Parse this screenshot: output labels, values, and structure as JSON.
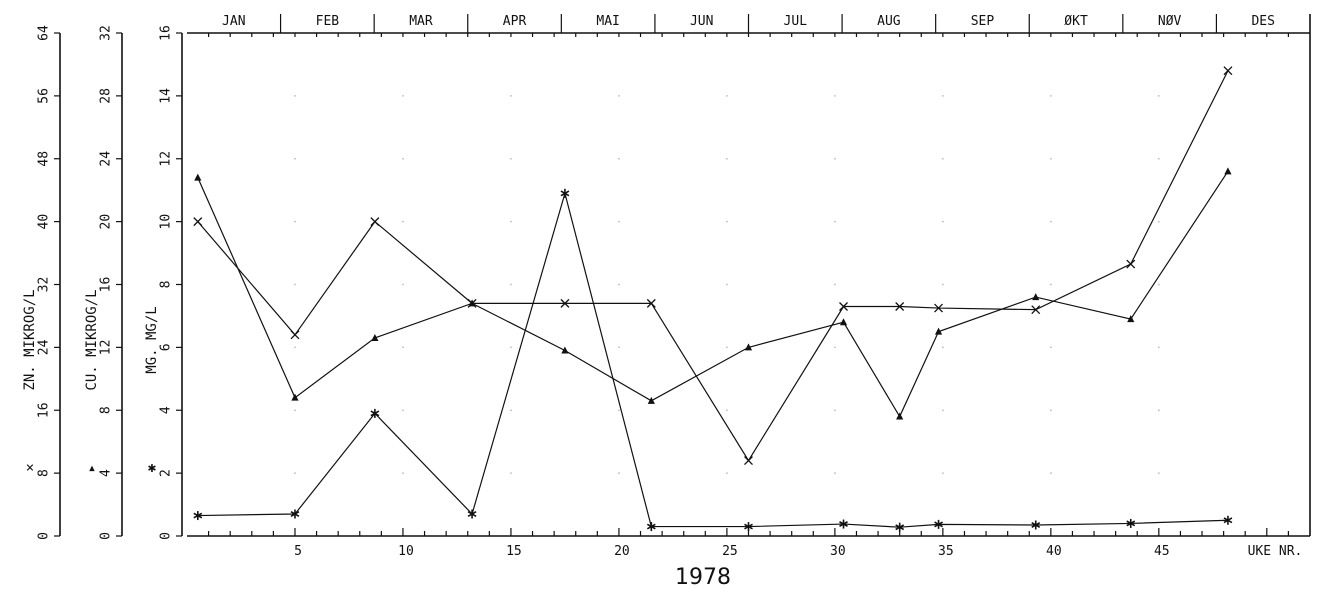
{
  "chart_data": {
    "type": "line",
    "title": "",
    "xlabel": "UKE NR.",
    "year_label": "1978",
    "x_ticks": [
      5,
      10,
      15,
      20,
      25,
      30,
      35,
      40,
      45
    ],
    "xlim": [
      0,
      52
    ],
    "months": [
      "JAN",
      "FEB",
      "MAR",
      "APR",
      "MAI",
      "JUN",
      "JUL",
      "AUG",
      "SEP",
      "ØKT",
      "NØV",
      "DES"
    ],
    "axes": [
      {
        "label": "ZN. MIKROG/L",
        "symbol": "×",
        "ticks": [
          0,
          8,
          16,
          24,
          32,
          40,
          48,
          56,
          64
        ],
        "ylim": [
          0,
          64
        ]
      },
      {
        "label": "CU. MIKROG/L",
        "symbol": "▴",
        "ticks": [
          0,
          4,
          8,
          12,
          16,
          20,
          24,
          28,
          32
        ],
        "ylim": [
          0,
          32
        ]
      },
      {
        "label": "MG. MG/L",
        "symbol": "✱",
        "ticks": [
          0,
          2,
          4,
          6,
          8,
          10,
          12,
          14,
          16
        ],
        "ylim": [
          0,
          16
        ]
      }
    ],
    "grid": "dotted",
    "series": [
      {
        "marker": "x",
        "axis": 0,
        "x": [
          0.5,
          5,
          8.7,
          13.2,
          17.5,
          21.5,
          26,
          30.4,
          33,
          34.8,
          39.3,
          43.7,
          48.2
        ],
        "y": [
          40,
          25.6,
          40,
          29.6,
          29.6,
          29.6,
          9.6,
          29.2,
          29.2,
          29,
          28.8,
          34.6,
          59.2
        ]
      },
      {
        "marker": "triangle",
        "axis": 1,
        "x": [
          0.5,
          5,
          8.7,
          13.2,
          17.5,
          21.5,
          26,
          30.4,
          33,
          34.8,
          39.3,
          43.7,
          48.2
        ],
        "y": [
          22.8,
          8.8,
          12.6,
          14.8,
          11.8,
          8.6,
          12.0,
          13.6,
          7.6,
          13.0,
          15.2,
          13.8,
          23.2
        ]
      },
      {
        "marker": "asterisk",
        "axis": 2,
        "x": [
          0.5,
          5,
          8.7,
          13.2,
          17.5,
          21.5,
          26,
          30.4,
          33,
          34.8,
          39.3,
          43.7,
          48.2
        ],
        "y": [
          0.65,
          0.7,
          3.9,
          0.7,
          10.9,
          0.3,
          0.3,
          0.38,
          0.28,
          0.37,
          0.35,
          0.4,
          0.5
        ]
      }
    ]
  }
}
